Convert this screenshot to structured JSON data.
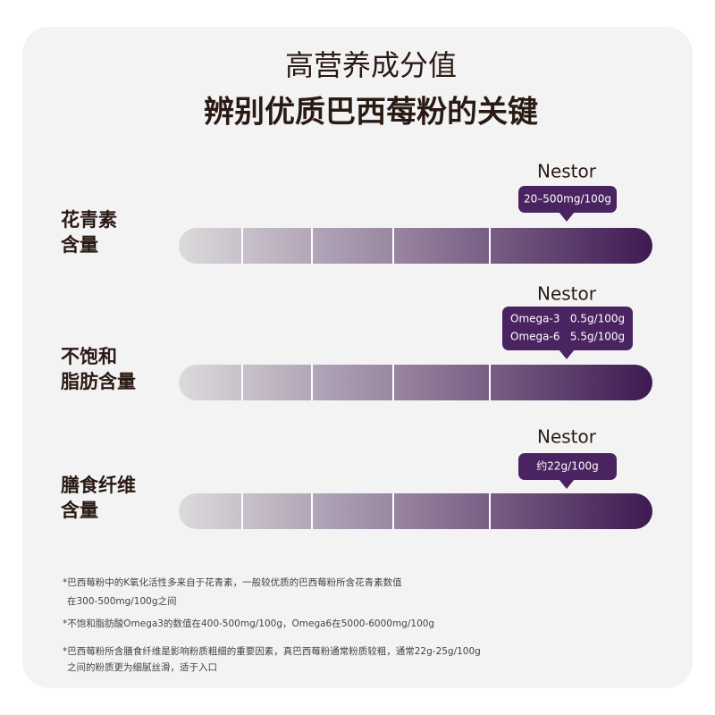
{
  "header": {
    "title": "高营养成分值",
    "subtitle": "辨别优质巴西莓粉的关键"
  },
  "rows": [
    {
      "label": [
        "花青素",
        "含量"
      ],
      "brand": "Nestor",
      "badge": [
        "20–500mg/100g"
      ]
    },
    {
      "label": [
        "不饱和",
        "脂肪含量"
      ],
      "brand": "Nestor",
      "badge": [
        "Omega-3   0.5g/100g",
        "Omega-6   5.5g/100g"
      ]
    },
    {
      "label": [
        "膳食纤维",
        "含量"
      ],
      "brand": "Nestor",
      "badge": [
        "约22g/100g"
      ]
    }
  ],
  "notes": [
    [
      "*巴西莓粉中的K氧化活性多来自于花青素，一般较优质的巴西莓粉所含花青素数值",
      "在300-500mg/100g之间"
    ],
    [
      "*不饱和脂肪酸Omega3的数值在400-500mg/100g，Omega6在5000-6000mg/100g"
    ],
    [
      "*巴西莓粉所含膳食纤维是影响粉质粗细的重要因素，真巴西莓粉通常粉质较粗，通常22g-25g/100g",
      "之间的粉质更为细腻丝滑，适于入口"
    ]
  ]
}
